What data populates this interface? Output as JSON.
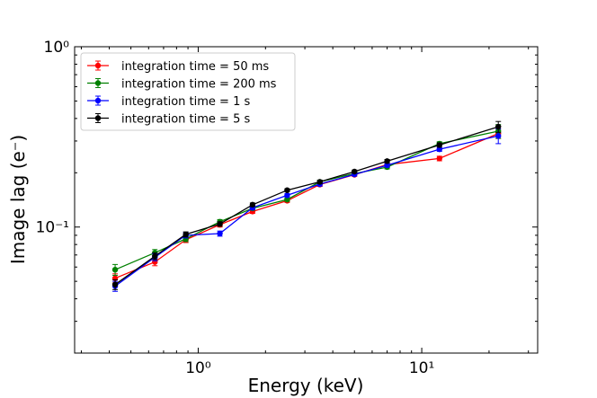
{
  "chart_data": {
    "type": "line",
    "title": "",
    "xlabel": "Energy (keV)",
    "ylabel": "Image lag (e⁻)",
    "xscale": "log",
    "yscale": "log",
    "xlim": [
      0.28,
      33
    ],
    "ylim": [
      0.02,
      1.0
    ],
    "x_tick_labels": [
      {
        "value": 1,
        "label": "10⁰"
      },
      {
        "value": 10,
        "label": "10¹"
      }
    ],
    "y_tick_labels": [
      {
        "value": 0.1,
        "label": "10⁻¹"
      },
      {
        "value": 1,
        "label": "10⁰"
      }
    ],
    "legend_position": "top-left",
    "x": [
      0.425,
      0.64,
      0.88,
      1.25,
      1.75,
      2.5,
      3.5,
      5.0,
      7.0,
      12.0,
      22.0
    ],
    "series": [
      {
        "name": "integration time = 50 ms",
        "color": "#ff0000",
        "values": [
          0.052,
          0.064,
          0.085,
          0.103,
          0.122,
          0.14,
          0.172,
          0.195,
          0.222,
          0.24,
          0.33
        ],
        "errors": [
          0.003,
          0.003,
          0.003,
          0.003,
          0.003,
          0.003,
          0.004,
          0.004,
          0.005,
          0.007,
          0.02
        ]
      },
      {
        "name": "integration time = 200 ms",
        "color": "#008000",
        "values": [
          0.058,
          0.072,
          0.086,
          0.107,
          0.127,
          0.142,
          0.178,
          0.198,
          0.215,
          0.29,
          0.34
        ],
        "errors": [
          0.004,
          0.003,
          0.003,
          0.003,
          0.003,
          0.003,
          0.004,
          0.004,
          0.005,
          0.007,
          0.03
        ]
      },
      {
        "name": "integration time = 1 s",
        "color": "#0000ff",
        "values": [
          0.047,
          0.068,
          0.09,
          0.092,
          0.128,
          0.15,
          0.173,
          0.196,
          0.22,
          0.27,
          0.32
        ],
        "errors": [
          0.003,
          0.003,
          0.003,
          0.003,
          0.003,
          0.003,
          0.004,
          0.004,
          0.005,
          0.007,
          0.03
        ]
      },
      {
        "name": "integration time = 5 s",
        "color": "#000000",
        "values": [
          0.048,
          0.069,
          0.091,
          0.104,
          0.133,
          0.16,
          0.178,
          0.203,
          0.232,
          0.285,
          0.36
        ],
        "errors": [
          0.003,
          0.003,
          0.003,
          0.003,
          0.003,
          0.003,
          0.004,
          0.004,
          0.005,
          0.008,
          0.025
        ]
      }
    ]
  }
}
